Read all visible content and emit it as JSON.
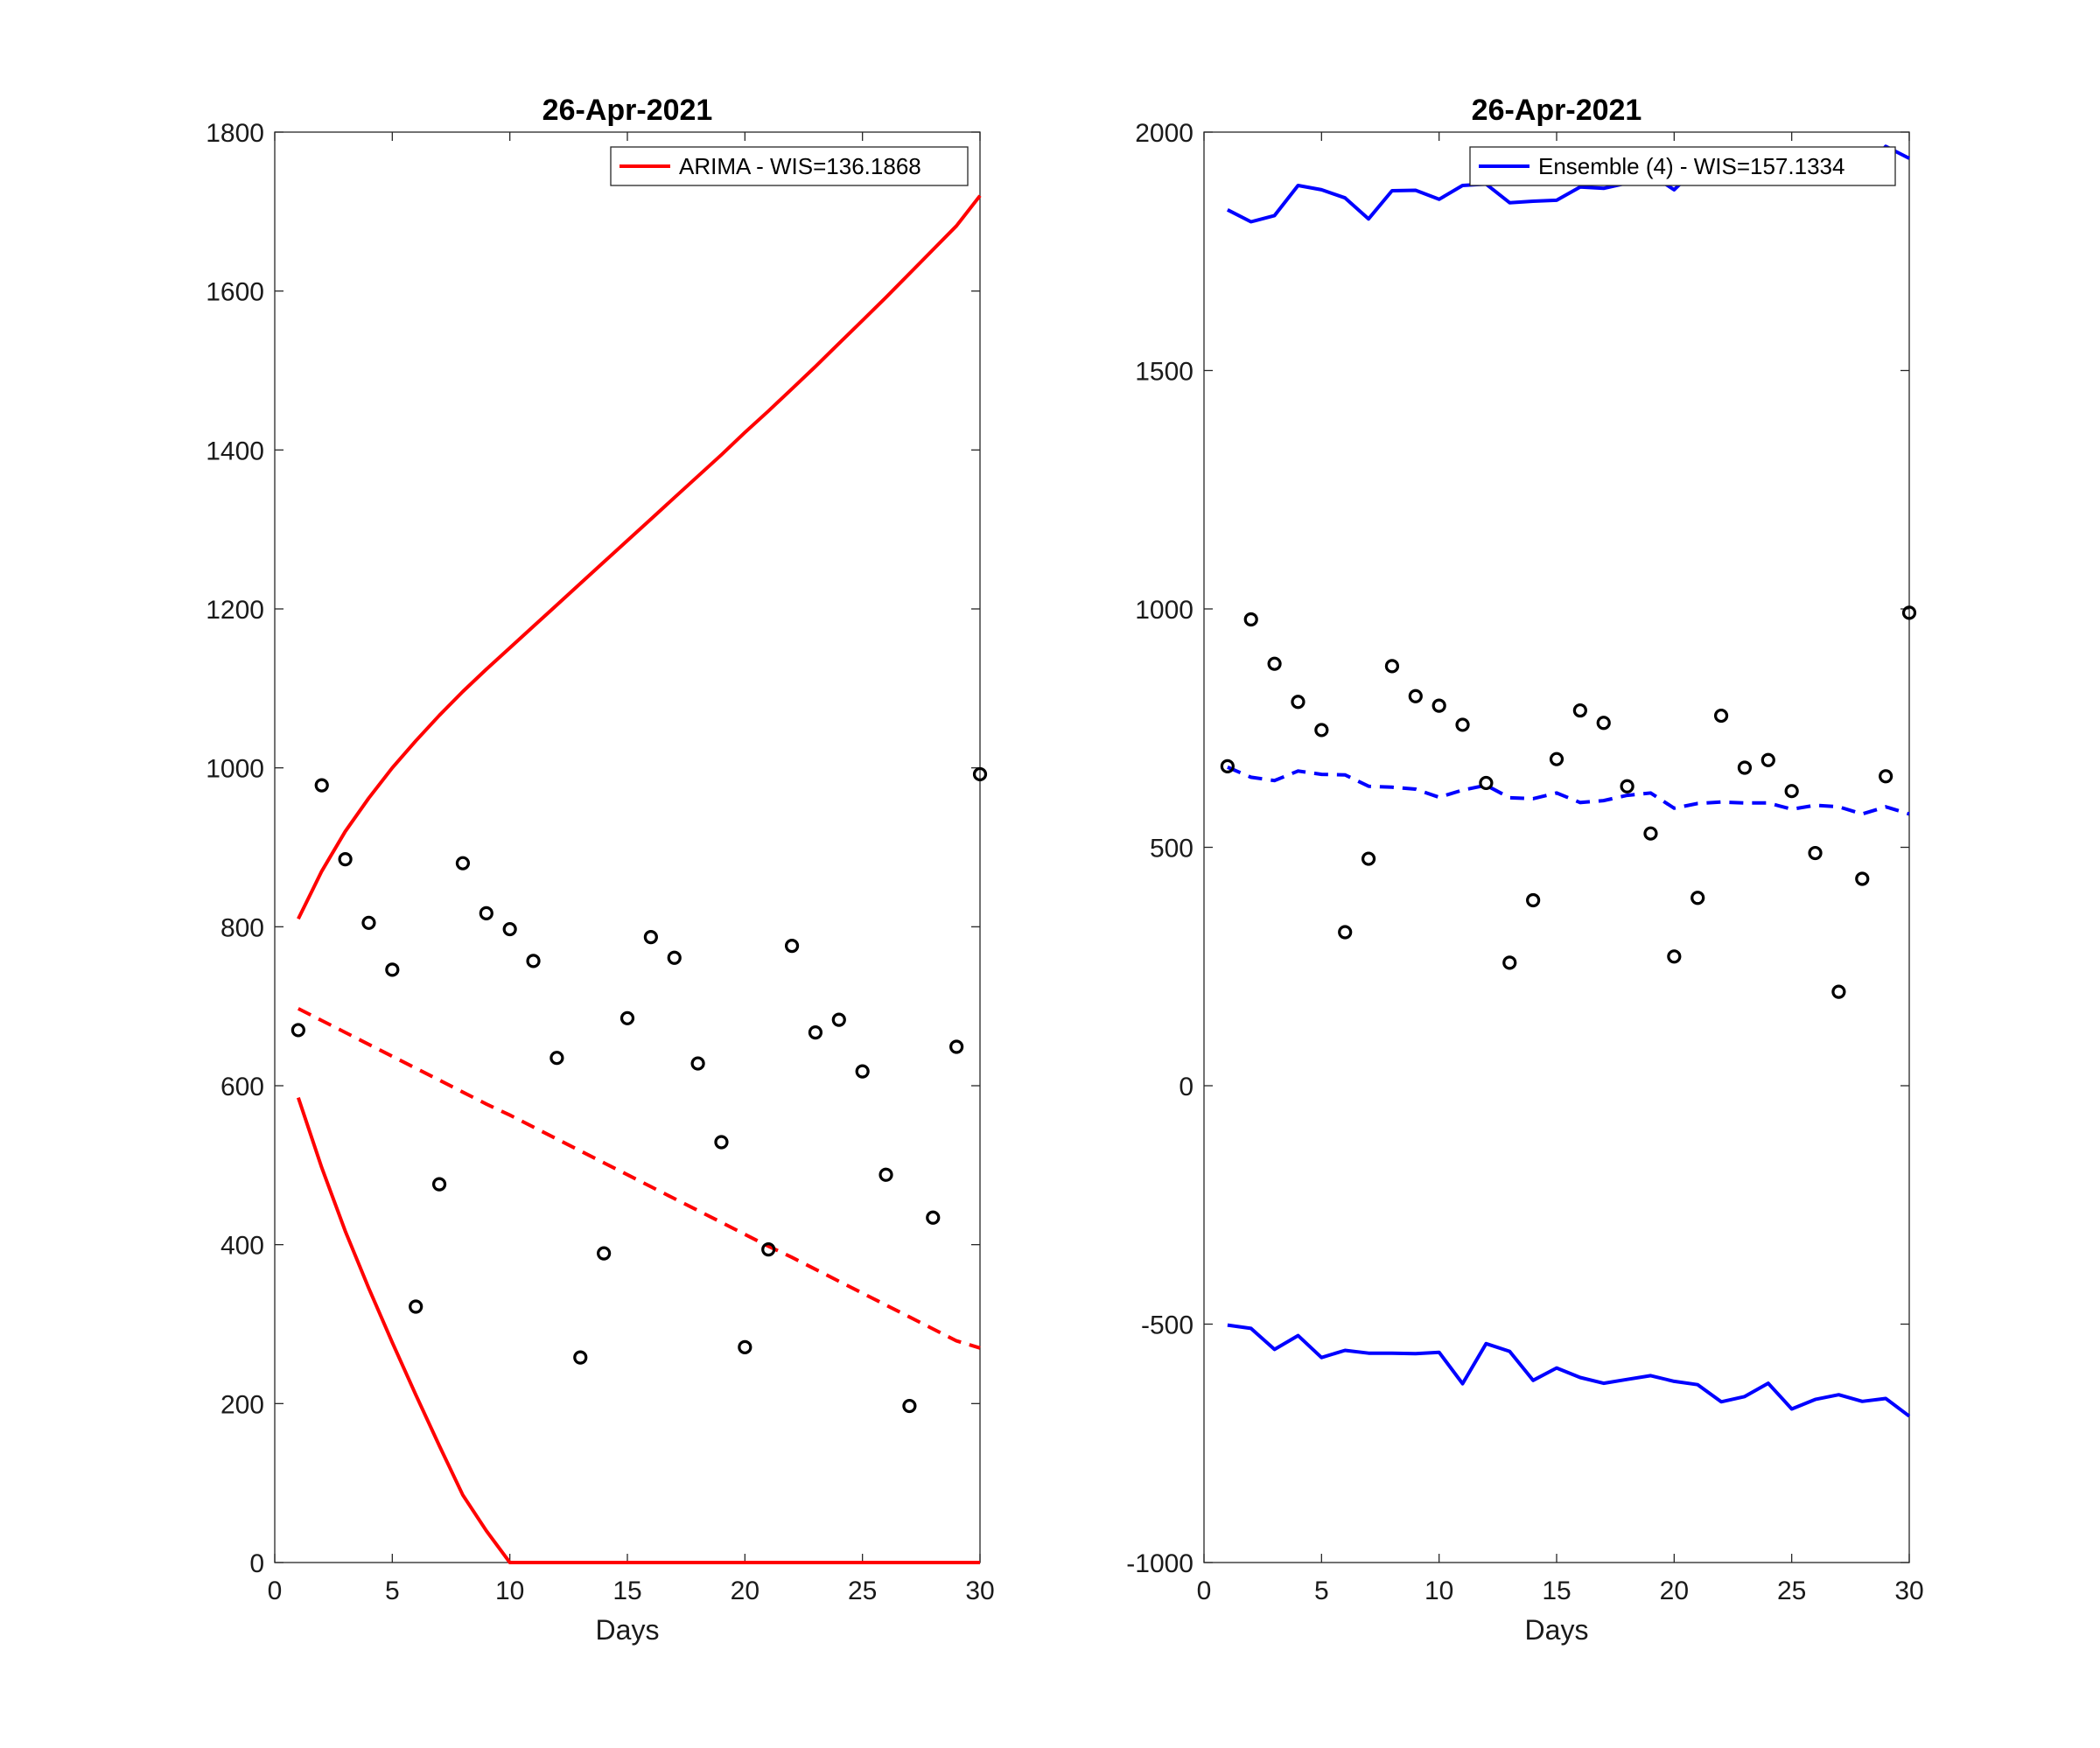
{
  "chart_data": [
    {
      "type": "line",
      "title": "26-Apr-2021",
      "xlabel": "Days",
      "ylabel": "",
      "xlim": [
        0,
        30
      ],
      "ylim": [
        0,
        1800
      ],
      "xticks": [
        0,
        5,
        10,
        15,
        20,
        25,
        30
      ],
      "yticks": [
        0,
        200,
        400,
        600,
        800,
        1000,
        1200,
        1400,
        1600,
        1800
      ],
      "grid": false,
      "legend_position": "top-right",
      "legend": "ARIMA - WIS=136.1868",
      "color": "#ff0000",
      "observed": {
        "x": [
          1,
          2,
          3,
          4,
          5,
          6,
          7,
          8,
          9,
          10,
          11,
          12,
          13,
          14,
          15,
          16,
          17,
          18,
          19,
          20,
          21,
          22,
          23,
          24,
          25,
          26,
          27,
          28,
          29,
          30
        ],
        "y": [
          670,
          978,
          885,
          805,
          746,
          322,
          476,
          880,
          817,
          797,
          757,
          635,
          258,
          389,
          685,
          787,
          761,
          628,
          529,
          271,
          394,
          776,
          667,
          683,
          618,
          488,
          197,
          434,
          649,
          992
        ]
      },
      "mean": {
        "x": [
          1,
          2,
          3,
          4,
          5,
          6,
          7,
          8,
          9,
          10,
          11,
          12,
          13,
          14,
          15,
          16,
          17,
          18,
          19,
          20,
          21,
          22,
          23,
          24,
          25,
          26,
          27,
          28,
          29,
          30
        ],
        "y": [
          697,
          682,
          667,
          652,
          637,
          622,
          607,
          592,
          577,
          563,
          548,
          533,
          518,
          503,
          488,
          473,
          458,
          443,
          428,
          413,
          398,
          384,
          369,
          354,
          339,
          324,
          309,
          294,
          279,
          270
        ]
      },
      "upper": {
        "x": [
          1,
          2,
          3,
          4,
          5,
          6,
          7,
          8,
          9,
          10,
          11,
          12,
          13,
          14,
          15,
          16,
          17,
          18,
          19,
          20,
          21,
          22,
          23,
          24,
          25,
          26,
          27,
          28,
          29,
          30
        ],
        "y": [
          810,
          870,
          920,
          962,
          1000,
          1034,
          1066,
          1096,
          1124,
          1151,
          1178,
          1205,
          1232,
          1259,
          1286,
          1313,
          1340,
          1367,
          1394,
          1422,
          1449,
          1477,
          1505,
          1534,
          1563,
          1592,
          1622,
          1652,
          1682,
          1720
        ]
      },
      "lower": {
        "x": [
          1,
          2,
          3,
          4,
          5,
          6,
          7,
          8,
          9,
          10,
          11,
          12,
          13,
          14,
          15,
          16,
          17,
          18,
          19,
          20,
          21,
          22,
          23,
          24,
          25,
          26,
          27,
          28,
          29,
          30
        ],
        "y": [
          585,
          497,
          417,
          345,
          277,
          211,
          147,
          85,
          40,
          0,
          0,
          0,
          0,
          0,
          0,
          0,
          0,
          0,
          0,
          0,
          0,
          0,
          0,
          0,
          0,
          0,
          0,
          0,
          0,
          0
        ]
      }
    },
    {
      "type": "line",
      "title": "26-Apr-2021",
      "xlabel": "Days",
      "ylabel": "",
      "xlim": [
        0,
        30
      ],
      "ylim": [
        -1000,
        2000
      ],
      "xticks": [
        0,
        5,
        10,
        15,
        20,
        25,
        30
      ],
      "yticks": [
        -1000,
        -500,
        0,
        500,
        1000,
        1500,
        2000
      ],
      "grid": false,
      "legend_position": "top-right",
      "legend": "Ensemble (4) - WIS=157.1334",
      "color": "#0000ff",
      "observed": {
        "x": [
          1,
          2,
          3,
          4,
          5,
          6,
          7,
          8,
          9,
          10,
          11,
          12,
          13,
          14,
          15,
          16,
          17,
          18,
          19,
          20,
          21,
          22,
          23,
          24,
          25,
          26,
          27,
          28,
          29,
          30
        ],
        "y": [
          670,
          978,
          885,
          805,
          746,
          322,
          476,
          880,
          817,
          797,
          757,
          635,
          258,
          389,
          685,
          787,
          761,
          628,
          529,
          271,
          394,
          776,
          667,
          683,
          618,
          488,
          197,
          434,
          649,
          992
        ]
      },
      "mean": {
        "x": [
          1,
          2,
          3,
          4,
          5,
          6,
          7,
          8,
          9,
          10,
          11,
          12,
          13,
          14,
          15,
          16,
          17,
          18,
          19,
          20,
          21,
          22,
          23,
          24,
          25,
          26,
          27,
          28,
          29,
          30
        ],
        "y": [
          668,
          647,
          640,
          660,
          653,
          652,
          628,
          626,
          622,
          605,
          620,
          630,
          604,
          602,
          614,
          594,
          598,
          609,
          614,
          582,
          592,
          595,
          593,
          593,
          580,
          588,
          585,
          570,
          585,
          570
        ]
      },
      "upper": {
        "x": [
          1,
          2,
          3,
          4,
          5,
          6,
          7,
          8,
          9,
          10,
          11,
          12,
          13,
          14,
          15,
          16,
          17,
          18,
          19,
          20,
          21,
          22,
          23,
          24,
          25,
          26,
          27,
          28,
          29,
          30
        ],
        "y": [
          1837,
          1812,
          1825,
          1888,
          1879,
          1862,
          1818,
          1877,
          1878,
          1859,
          1888,
          1891,
          1852,
          1855,
          1857,
          1885,
          1882,
          1893,
          1911,
          1879,
          1927,
          1937,
          1928,
          1928,
          1914,
          1920,
          1927,
          1913,
          1970,
          1945
        ]
      },
      "lower": {
        "x": [
          1,
          2,
          3,
          4,
          5,
          6,
          7,
          8,
          9,
          10,
          11,
          12,
          13,
          14,
          15,
          16,
          17,
          18,
          19,
          20,
          21,
          22,
          23,
          24,
          25,
          26,
          27,
          28,
          29,
          30
        ],
        "y": [
          -502,
          -509,
          -553,
          -524,
          -570,
          -555,
          -561,
          -561,
          -562,
          -559,
          -625,
          -541,
          -557,
          -618,
          -592,
          -612,
          -624,
          -616,
          -608,
          -620,
          -627,
          -663,
          -652,
          -624,
          -678,
          -658,
          -648,
          -662,
          -656,
          -693
        ]
      }
    }
  ]
}
